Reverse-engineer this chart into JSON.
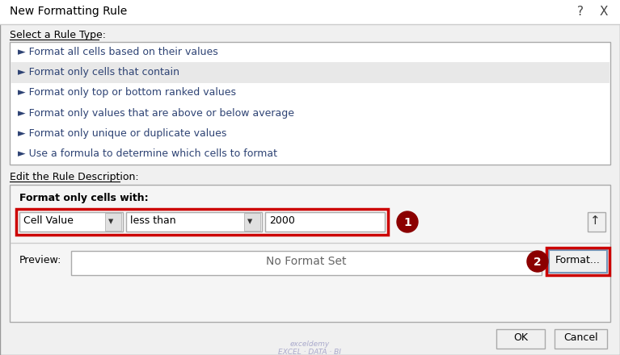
{
  "title": "New Formatting Rule",
  "bg_color": "#f0f0f0",
  "white": "#ffffff",
  "rule_types": [
    "Format all cells based on their values",
    "Format only cells that contain",
    "Format only top or bottom ranked values",
    "Format only values that are above or below average",
    "Format only unique or duplicate values",
    "Use a formula to determine which cells to format"
  ],
  "selected_rule_idx": 1,
  "selected_rule_bg": "#e8e8e8",
  "section1_label": "Select a Rule Type:",
  "section2_label": "Edit the Rule Description:",
  "format_cells_label": "Format only cells with:",
  "dropdown1": "Cell Value",
  "dropdown2": "less than",
  "value_field": "2000",
  "preview_label": "Preview:",
  "preview_text": "No Format Set",
  "format_btn": "Format...",
  "ok_btn": "OK",
  "cancel_btn": "Cancel",
  "red_outline": "#cc0000",
  "circle_color": "#8b0000",
  "arrow_marker": "►",
  "title_color": "#2e4374",
  "rule_text_color": "#2e4374",
  "bold_label_color": "#000000",
  "body_text_color": "#000000"
}
